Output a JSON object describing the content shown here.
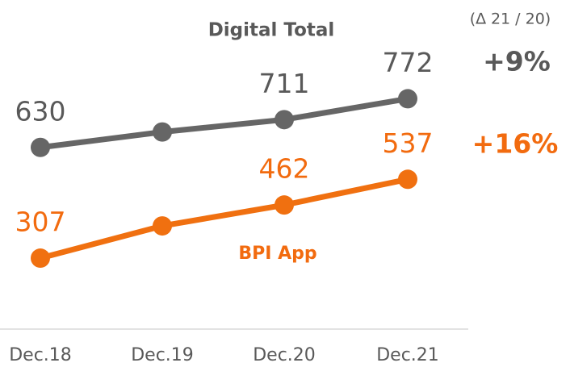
{
  "chart_data": {
    "type": "line",
    "note": "(∆ 21 / 20)",
    "categories": [
      "Dec.18",
      "Dec.19",
      "Dec.20",
      "Dec.21"
    ],
    "ylim": [
      100,
      1060
    ],
    "series": [
      {
        "name": "Digital Total",
        "color": "#666666",
        "label_color": "#595959",
        "change": "+9%",
        "values": [
          630,
          675,
          711,
          772
        ],
        "value_labels": [
          "630",
          null,
          "711",
          "772"
        ]
      },
      {
        "name": "BPI App",
        "color": "#f07010",
        "label_color": "#f26b0f",
        "change": "+16%",
        "values": [
          307,
          401,
          462,
          537
        ],
        "value_labels": [
          "307",
          null,
          "462",
          "537"
        ]
      }
    ]
  }
}
